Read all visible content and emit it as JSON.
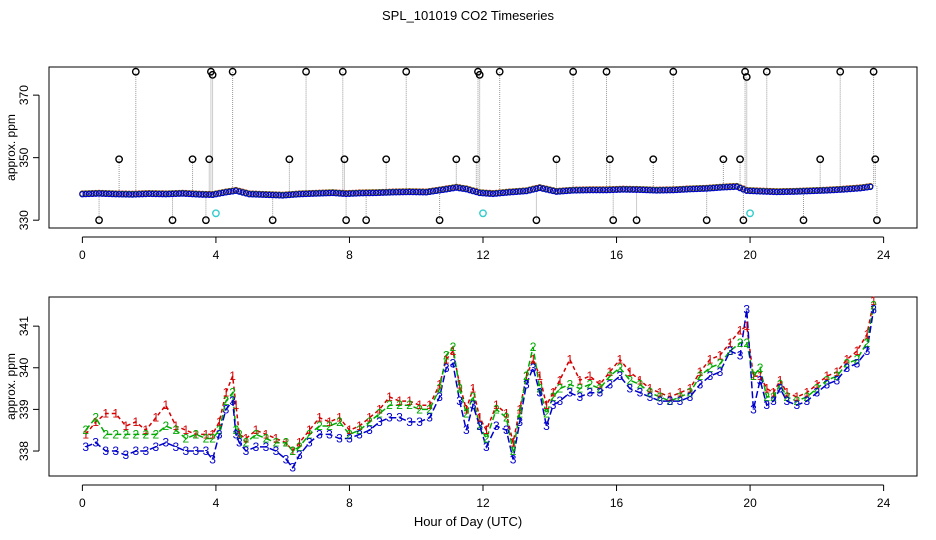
{
  "title": "SPL_101019  CO2 Timeseries",
  "xlabel": "Hour of Day (UTC)",
  "colors": {
    "series1": "#d40000",
    "series2": "#00aa00",
    "series3": "#0000cc",
    "outlier": "#000000",
    "cyan": "#33cccc",
    "drop": "#999999"
  },
  "chart_data": [
    {
      "type": "scatter",
      "title": "SPL_101019  CO2 Timeseries",
      "xlabel": "",
      "ylabel": "approx. ppm",
      "xlim": [
        -1,
        25
      ],
      "ylim": [
        327.5,
        379
      ],
      "xticks": [
        0,
        4,
        8,
        12,
        16,
        20,
        24
      ],
      "yticks": [
        330,
        350,
        370
      ],
      "baseline_series": {
        "x": [
          0.0,
          0.5,
          1.0,
          1.5,
          2.0,
          2.5,
          3.0,
          3.5,
          3.9,
          4.3,
          4.6,
          5.0,
          5.5,
          6.0,
          6.5,
          7.0,
          7.5,
          7.9,
          8.3,
          8.8,
          9.3,
          9.8,
          10.3,
          10.8,
          11.2,
          11.5,
          11.9,
          12.3,
          12.8,
          13.3,
          13.7,
          14.2,
          14.7,
          15.2,
          15.7,
          16.2,
          16.7,
          17.2,
          17.7,
          18.2,
          18.7,
          19.2,
          19.6,
          19.9,
          20.3,
          20.8,
          21.3,
          21.8,
          22.3,
          22.8,
          23.3,
          23.7
        ],
        "y": [
          338.4,
          338.6,
          338.4,
          338.3,
          338.5,
          338.4,
          338.6,
          338.3,
          338.2,
          339.0,
          339.5,
          338.4,
          338.2,
          338.0,
          338.4,
          338.6,
          338.8,
          338.5,
          338.7,
          338.8,
          339.0,
          339.1,
          339.0,
          339.8,
          340.5,
          340.0,
          338.8,
          338.5,
          339.0,
          339.4,
          340.4,
          339.2,
          339.6,
          339.7,
          339.7,
          339.9,
          339.8,
          339.6,
          339.7,
          340.0,
          340.2,
          340.6,
          340.8,
          339.5,
          339.3,
          339.1,
          339.2,
          339.4,
          339.6,
          339.9,
          340.3,
          340.9
        ]
      },
      "outliers": {
        "x": [
          0.5,
          1.1,
          1.6,
          2.7,
          3.3,
          3.7,
          3.8,
          3.85,
          3.9,
          4.5,
          5.7,
          6.2,
          6.7,
          7.8,
          7.85,
          7.9,
          8.5,
          9.1,
          9.7,
          10.7,
          11.2,
          11.8,
          11.85,
          11.9,
          12.5,
          13.6,
          14.2,
          14.7,
          15.7,
          15.8,
          15.9,
          16.6,
          17.1,
          17.7,
          18.7,
          19.2,
          19.7,
          19.8,
          19.85,
          19.9,
          20.5,
          21.6,
          22.1,
          22.7,
          23.7,
          23.75,
          23.8
        ],
        "y": [
          330,
          349.5,
          377.5,
          330,
          349.5,
          330,
          349.5,
          377.5,
          376.5,
          377.5,
          330,
          349.5,
          377.5,
          377.5,
          349.5,
          330,
          330,
          349.5,
          377.5,
          330,
          349.5,
          349.5,
          377.5,
          376.5,
          377.5,
          330,
          349.5,
          377.5,
          377.5,
          349.5,
          330,
          330,
          349.5,
          377.5,
          330,
          349.5,
          349.5,
          330,
          377.5,
          375.8,
          377.5,
          330,
          349.5,
          377.5,
          377.5,
          349.5,
          330
        ]
      },
      "cyan_points": {
        "x": [
          4.0,
          12.0,
          20.0
        ],
        "y": [
          332.2,
          332.2,
          332.2
        ]
      }
    },
    {
      "type": "line",
      "title": "",
      "xlabel": "Hour of Day (UTC)",
      "ylabel": "approx. ppm",
      "xlim": [
        -1,
        25
      ],
      "ylim": [
        337.4,
        341.7
      ],
      "xticks": [
        0,
        4,
        8,
        12,
        16,
        20,
        24
      ],
      "yticks": [
        338,
        339,
        340,
        341
      ],
      "x": [
        0.1,
        0.4,
        0.7,
        1.0,
        1.3,
        1.6,
        1.9,
        2.2,
        2.5,
        2.8,
        3.1,
        3.4,
        3.7,
        3.9,
        4.1,
        4.3,
        4.5,
        4.6,
        4.7,
        4.9,
        5.2,
        5.5,
        5.8,
        6.1,
        6.3,
        6.5,
        6.8,
        7.1,
        7.4,
        7.7,
        8.0,
        8.3,
        8.6,
        8.9,
        9.2,
        9.5,
        9.8,
        10.1,
        10.4,
        10.7,
        10.9,
        11.1,
        11.3,
        11.5,
        11.7,
        11.9,
        12.1,
        12.4,
        12.7,
        12.9,
        13.1,
        13.3,
        13.5,
        13.7,
        13.9,
        14.1,
        14.3,
        14.6,
        14.9,
        15.2,
        15.5,
        15.8,
        16.1,
        16.4,
        16.7,
        17.0,
        17.3,
        17.6,
        17.9,
        18.2,
        18.5,
        18.8,
        19.1,
        19.4,
        19.7,
        19.9,
        20.1,
        20.3,
        20.5,
        20.7,
        20.9,
        21.1,
        21.4,
        21.7,
        22.0,
        22.3,
        22.6,
        22.9,
        23.2,
        23.5,
        23.7
      ],
      "series": [
        {
          "name": "1",
          "values": [
            338.4,
            338.7,
            338.9,
            338.9,
            338.6,
            338.7,
            338.5,
            338.8,
            339.1,
            338.6,
            338.5,
            338.4,
            338.4,
            338.4,
            338.7,
            339.4,
            339.8,
            339.1,
            338.4,
            338.3,
            338.5,
            338.4,
            338.3,
            338.2,
            338.0,
            338.2,
            338.5,
            338.8,
            338.7,
            338.8,
            338.5,
            338.6,
            338.8,
            339.0,
            339.3,
            339.2,
            339.2,
            339.1,
            339.1,
            339.6,
            340.2,
            340.4,
            339.6,
            339.0,
            339.5,
            338.8,
            338.5,
            339.1,
            338.9,
            338.2,
            339.0,
            339.8,
            340.2,
            339.8,
            339.1,
            339.4,
            339.7,
            340.2,
            339.7,
            339.8,
            339.6,
            339.9,
            340.2,
            339.9,
            339.7,
            339.5,
            339.4,
            339.3,
            339.4,
            339.5,
            339.9,
            340.2,
            340.3,
            340.6,
            340.9,
            341.0,
            339.8,
            339.8,
            339.5,
            339.4,
            339.7,
            339.4,
            339.3,
            339.4,
            339.6,
            339.8,
            339.9,
            340.2,
            340.4,
            340.8,
            341.6
          ]
        },
        {
          "name": "2",
          "values": [
            338.5,
            338.8,
            338.4,
            338.4,
            338.4,
            338.4,
            338.4,
            338.4,
            338.6,
            338.5,
            338.3,
            338.4,
            338.3,
            338.3,
            338.5,
            339.2,
            339.4,
            338.5,
            338.4,
            338.2,
            338.4,
            338.3,
            338.2,
            338.2,
            338.0,
            338.1,
            338.4,
            338.6,
            338.6,
            338.7,
            338.4,
            338.5,
            338.7,
            338.9,
            339.1,
            339.1,
            339.1,
            339.0,
            339.0,
            339.5,
            340.3,
            340.5,
            339.5,
            338.9,
            339.3,
            338.6,
            338.3,
            339.0,
            338.8,
            338.0,
            338.9,
            339.8,
            340.5,
            339.5,
            338.9,
            339.3,
            339.5,
            339.6,
            339.5,
            339.6,
            339.5,
            339.8,
            340.0,
            339.7,
            339.6,
            339.4,
            339.3,
            339.2,
            339.3,
            339.4,
            339.8,
            340.0,
            340.1,
            340.4,
            340.6,
            340.6,
            339.8,
            340.0,
            339.3,
            339.3,
            339.6,
            339.3,
            339.2,
            339.3,
            339.5,
            339.7,
            339.8,
            340.1,
            340.2,
            340.6,
            341.5
          ]
        },
        {
          "name": "3",
          "values": [
            338.1,
            338.2,
            338.0,
            338.0,
            337.9,
            338.0,
            338.0,
            338.1,
            338.2,
            338.1,
            338.0,
            338.0,
            338.0,
            337.8,
            338.4,
            339.0,
            339.2,
            338.4,
            338.2,
            338.0,
            338.1,
            338.1,
            338.0,
            337.8,
            337.6,
            337.9,
            338.2,
            338.4,
            338.4,
            338.3,
            338.3,
            338.4,
            338.5,
            338.7,
            338.8,
            338.8,
            338.7,
            338.7,
            338.8,
            339.3,
            340.0,
            340.1,
            339.2,
            338.5,
            339.1,
            338.6,
            338.1,
            338.6,
            338.5,
            337.8,
            338.7,
            339.6,
            340.0,
            339.4,
            338.6,
            339.1,
            339.2,
            339.4,
            339.3,
            339.4,
            339.4,
            339.6,
            339.8,
            339.5,
            339.4,
            339.3,
            339.2,
            339.2,
            339.2,
            339.3,
            339.6,
            339.8,
            339.9,
            340.4,
            340.3,
            341.4,
            339.0,
            339.7,
            339.1,
            339.2,
            339.5,
            339.2,
            339.1,
            339.2,
            339.4,
            339.6,
            339.7,
            340.0,
            340.1,
            340.4,
            341.4
          ]
        }
      ]
    }
  ]
}
